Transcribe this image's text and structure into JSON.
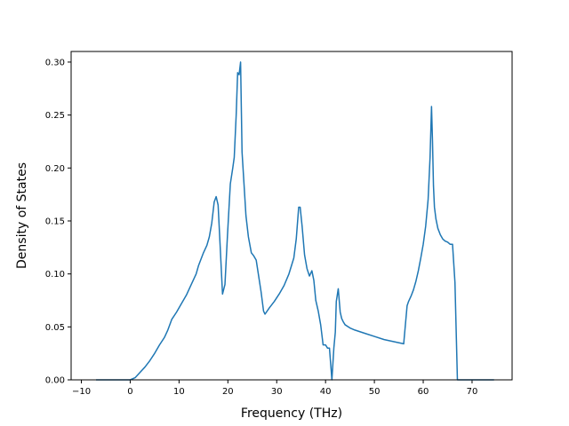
{
  "chart_data": {
    "type": "line",
    "title": "",
    "xlabel": "Frequency (THz)",
    "ylabel": "Density of States",
    "xlim": [
      -12.1,
      78.2
    ],
    "ylim": [
      0.0,
      0.31
    ],
    "xticks": [
      -10,
      0,
      10,
      20,
      30,
      40,
      50,
      60,
      70
    ],
    "xtick_labels": [
      "−10",
      "0",
      "10",
      "20",
      "30",
      "40",
      "50",
      "60",
      "70"
    ],
    "yticks": [
      0.0,
      0.05,
      0.1,
      0.15,
      0.2,
      0.25,
      0.3
    ],
    "ytick_labels": [
      "0.00",
      "0.05",
      "0.10",
      "0.15",
      "0.20",
      "0.25",
      "0.30"
    ],
    "grid": false,
    "series": [
      {
        "color": "#1f77b4",
        "x": [
          -7.0,
          0.0,
          1.0,
          2.0,
          3.0,
          4.0,
          5.0,
          6.0,
          7.0,
          7.7,
          8.5,
          9.5,
          10.5,
          11.5,
          12.5,
          13.5,
          14.0,
          15.0,
          15.7,
          16.2,
          16.7,
          17.2,
          17.6,
          18.0,
          18.4,
          18.9,
          19.4,
          19.9,
          20.5,
          21.0,
          21.3,
          21.7,
          22.0,
          22.3,
          22.6,
          22.9,
          23.3,
          23.7,
          24.2,
          24.8,
          25.3,
          25.8,
          26.3,
          26.8,
          27.3,
          27.6,
          28.5,
          29.5,
          30.5,
          31.5,
          32.5,
          33.5,
          34.0,
          34.5,
          34.8,
          35.2,
          35.7,
          36.2,
          36.7,
          37.2,
          37.6,
          38.0,
          38.5,
          39.0,
          39.5,
          40.0,
          40.4,
          40.8,
          41.3,
          41.7,
          42.0,
          42.2,
          42.6,
          43.0,
          43.3,
          43.6,
          44.0,
          45.0,
          46.0,
          48.0,
          50.0,
          52.0,
          54.0,
          56.0,
          56.7,
          57.0,
          57.5,
          58.0,
          58.5,
          59.0,
          59.5,
          60.0,
          60.5,
          61.0,
          61.4,
          61.7,
          61.9,
          62.1,
          62.3,
          62.6,
          63.0,
          63.5,
          64.0,
          64.5,
          65.0,
          65.5,
          66.0,
          66.5,
          67.0,
          67.3,
          67.6,
          68.0,
          69.0,
          70.0,
          71.0,
          72.0,
          73.0,
          74.5
        ],
        "y": [
          0.0,
          0.0,
          0.002,
          0.007,
          0.012,
          0.018,
          0.025,
          0.033,
          0.04,
          0.047,
          0.057,
          0.064,
          0.072,
          0.08,
          0.09,
          0.1,
          0.108,
          0.12,
          0.127,
          0.135,
          0.148,
          0.168,
          0.173,
          0.165,
          0.128,
          0.081,
          0.09,
          0.135,
          0.185,
          0.2,
          0.21,
          0.25,
          0.29,
          0.288,
          0.3,
          0.215,
          0.185,
          0.155,
          0.135,
          0.12,
          0.117,
          0.113,
          0.098,
          0.083,
          0.065,
          0.062,
          0.068,
          0.074,
          0.081,
          0.089,
          0.1,
          0.115,
          0.133,
          0.163,
          0.163,
          0.145,
          0.118,
          0.105,
          0.098,
          0.103,
          0.094,
          0.075,
          0.065,
          0.052,
          0.033,
          0.033,
          0.03,
          0.03,
          0.0,
          0.03,
          0.045,
          0.074,
          0.086,
          0.064,
          0.058,
          0.055,
          0.052,
          0.049,
          0.047,
          0.044,
          0.041,
          0.038,
          0.036,
          0.034,
          0.07,
          0.074,
          0.079,
          0.085,
          0.093,
          0.103,
          0.115,
          0.128,
          0.145,
          0.17,
          0.21,
          0.258,
          0.225,
          0.183,
          0.163,
          0.152,
          0.143,
          0.137,
          0.133,
          0.131,
          0.13,
          0.128,
          0.128,
          0.092,
          0.0,
          0.0,
          0.0,
          0.0,
          0.0,
          0.0,
          0.0,
          0.0,
          0.0,
          0.0
        ]
      }
    ]
  }
}
